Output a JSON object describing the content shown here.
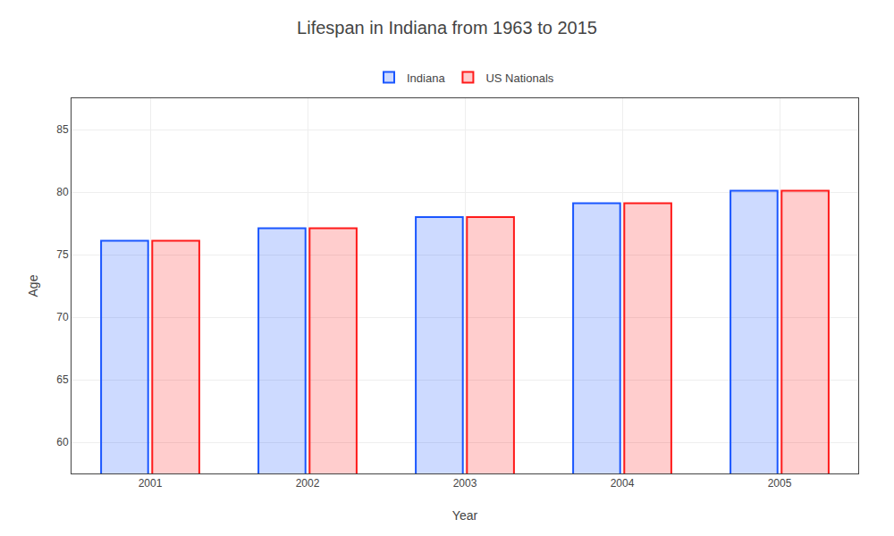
{
  "chart_data": {
    "type": "bar",
    "title": "Lifespan in Indiana from 1963 to 2015",
    "x_label": "Year",
    "y_label": "Age",
    "categories": [
      "2001",
      "2002",
      "2003",
      "2004",
      "2005"
    ],
    "series": [
      {
        "name": "Indiana",
        "color": "#1a56ff",
        "values": [
          76.1,
          77.1,
          78.0,
          79.1,
          80.1
        ]
      },
      {
        "name": "US Nationals",
        "color": "#ff1a1a",
        "values": [
          76.1,
          77.1,
          78.0,
          79.1,
          80.1
        ]
      }
    ],
    "ylim": [
      57.5,
      87.5
    ],
    "yticks": [
      60,
      65,
      70,
      75,
      80,
      85
    ],
    "grid": true,
    "legend": "top"
  }
}
